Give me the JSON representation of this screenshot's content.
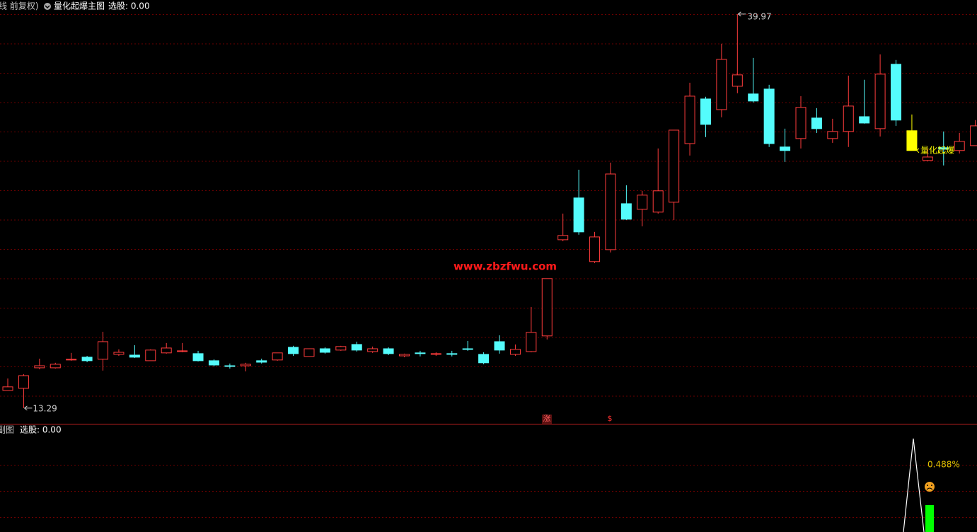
{
  "header": {
    "mode": "线 前复权)",
    "indicator": "量化起爆主图",
    "select": "选股: 0.00"
  },
  "watermark": "www.zbzfwu.com",
  "markers": {
    "rise": "涨",
    "dollar": "$"
  },
  "sub_panel": {
    "title": "副图",
    "select": "选股: 0.00",
    "value_label": "0.488%"
  },
  "chart_data": {
    "type": "candlestick",
    "categories": [
      null,
      null,
      null,
      null,
      null,
      null,
      null,
      null,
      null,
      null,
      null,
      null,
      null,
      null,
      null,
      null,
      null,
      null,
      null,
      null,
      null,
      null,
      null,
      null,
      null,
      null,
      null,
      null,
      null,
      null,
      null,
      null,
      null,
      null,
      null,
      null,
      null,
      null,
      null,
      null,
      null,
      null,
      null,
      null,
      null,
      null,
      null,
      null,
      null,
      null,
      null,
      null,
      null,
      null,
      null,
      null,
      null,
      null,
      null,
      null,
      null,
      null
    ],
    "open": [
      14.49,
      14.63,
      16.02,
      16.02,
      16.55,
      16.74,
      16.6,
      16.93,
      16.88,
      16.5,
      17.03,
      17.12,
      16.98,
      16.5,
      16.16,
      16.16,
      16.5,
      16.55,
      17.41,
      16.79,
      17.31,
      17.22,
      17.6,
      17.12,
      17.31,
      16.83,
      17.03,
      16.93,
      16.98,
      17.31,
      16.93,
      17.79,
      16.93,
      17.12,
      18.18,
      24.69,
      27.52,
      23.21,
      24.02,
      27.13,
      26.75,
      26.56,
      27.23,
      31.2,
      34.22,
      33.5,
      35.08,
      34.56,
      34.89,
      30.97,
      31.54,
      32.93,
      31.54,
      32.02,
      33.02,
      32.21,
      36.57,
      32.07,
      30.06,
      30.92,
      30.73,
      31.06
    ],
    "high": [
      15.3,
      15.59,
      16.64,
      16.36,
      17.03,
      16.83,
      18.46,
      17.27,
      17.55,
      17.27,
      17.7,
      17.7,
      17.17,
      16.6,
      16.31,
      16.36,
      16.64,
      17.03,
      17.51,
      17.31,
      17.41,
      17.51,
      17.79,
      17.46,
      17.41,
      16.98,
      17.17,
      17.07,
      17.17,
      17.84,
      17.07,
      18.22,
      17.6,
      20.14,
      22.06,
      26.46,
      29.43,
      25.22,
      29.91,
      28.38,
      28.0,
      30.87,
      32.11,
      35.32,
      34.37,
      37.96,
      39.97,
      37.0,
      35.18,
      32.21,
      34.41,
      33.6,
      32.88,
      35.8,
      35.52,
      37.24,
      36.86,
      33.17,
      30.87,
      32.02,
      31.92,
      32.79
    ],
    "low": [
      14.49,
      13.29,
      15.92,
      15.97,
      16.5,
      16.4,
      15.83,
      16.83,
      16.69,
      16.5,
      16.98,
      17.07,
      16.45,
      16.12,
      15.97,
      15.78,
      16.31,
      16.5,
      16.83,
      16.79,
      16.98,
      17.17,
      17.12,
      17.03,
      16.88,
      16.74,
      16.79,
      16.83,
      16.79,
      17.17,
      16.26,
      16.98,
      16.83,
      17.07,
      17.94,
      24.59,
      25.03,
      23.11,
      23.83,
      26.03,
      25.6,
      26.46,
      26.03,
      30.39,
      31.64,
      32.98,
      34.61,
      33.98,
      30.97,
      29.96,
      30.87,
      31.92,
      31.25,
      30.97,
      32.55,
      31.68,
      32.4,
      30.73,
      30.01,
      29.72,
      30.53,
      31.06
    ],
    "close": [
      14.73,
      15.49,
      16.16,
      16.26,
      16.6,
      16.5,
      17.79,
      17.07,
      16.74,
      17.22,
      17.36,
      17.17,
      16.5,
      16.21,
      16.12,
      16.26,
      16.4,
      17.03,
      16.98,
      17.31,
      17.07,
      17.46,
      17.22,
      17.31,
      16.98,
      16.93,
      16.98,
      16.98,
      16.93,
      17.27,
      16.36,
      17.22,
      17.27,
      18.42,
      22.06,
      24.98,
      25.22,
      24.88,
      29.14,
      26.08,
      27.71,
      28.0,
      32.11,
      34.41,
      32.5,
      36.9,
      35.85,
      34.08,
      31.2,
      30.73,
      33.65,
      32.21,
      32.02,
      33.74,
      32.59,
      35.9,
      32.79,
      30.73,
      30.29,
      30.82,
      31.35,
      32.4
    ],
    "up_color": "#ff3c3c",
    "down_color": "#54fcfc",
    "signal": {
      "index": 57,
      "color": "#ffff00",
      "label": "量化起爆"
    },
    "max_label": 39.97,
    "min_label": 13.29,
    "ylim": [
      12.28,
      40.92
    ]
  }
}
